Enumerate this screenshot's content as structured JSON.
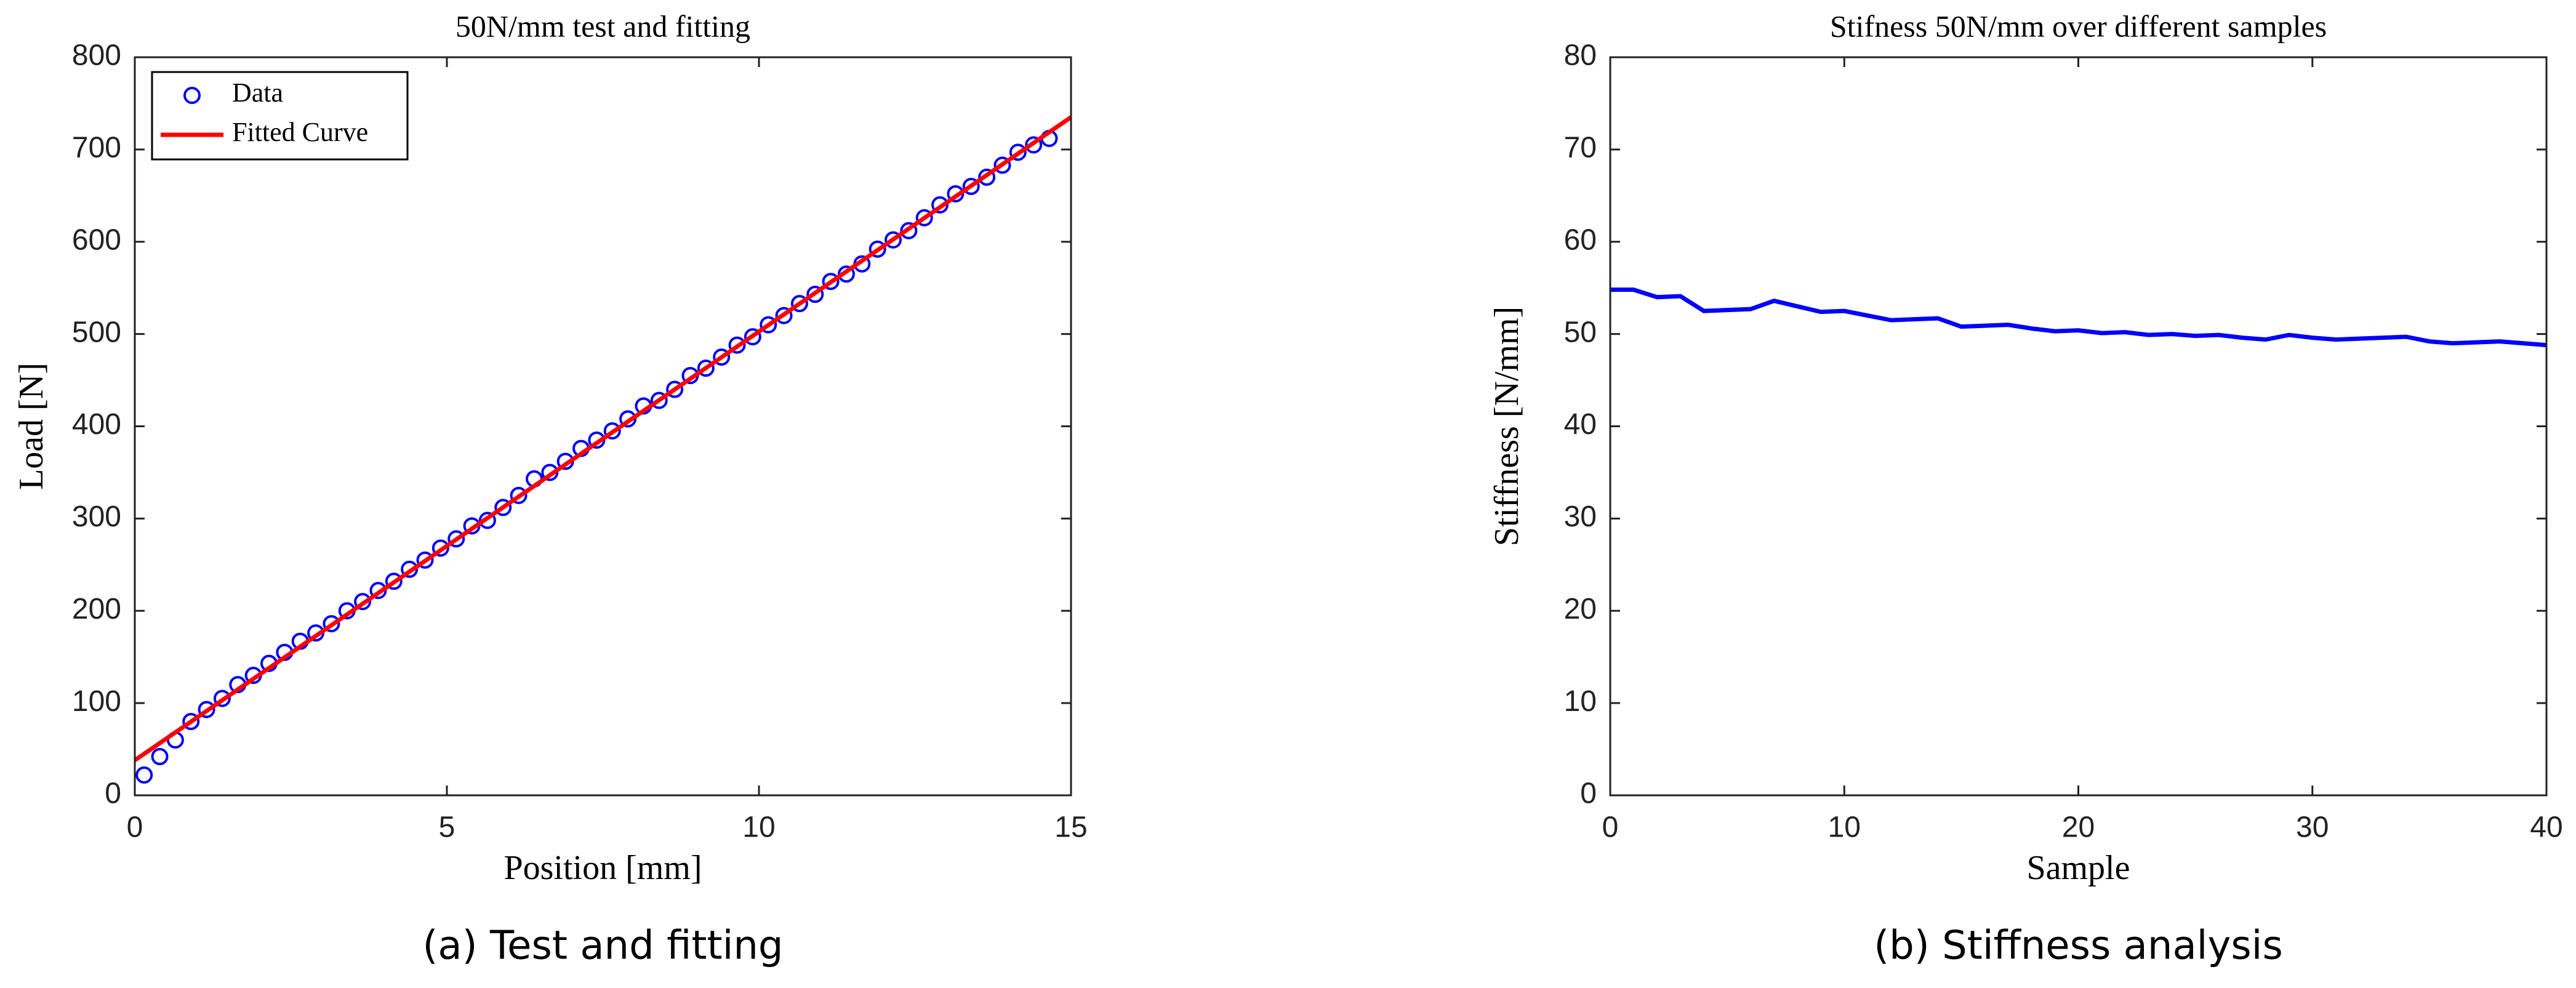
{
  "chart_data": [
    {
      "type": "scatter",
      "title": "50N/mm test and fitting",
      "xlabel": "Position [mm]",
      "ylabel": "Load [N]",
      "caption": "(a) Test and fitting",
      "xlim": [
        0,
        15
      ],
      "xticks": [
        0,
        5,
        10,
        15
      ],
      "ylim": [
        0,
        800
      ],
      "yticks": [
        0,
        100,
        200,
        300,
        400,
        500,
        600,
        700,
        800
      ],
      "legend": "upper left",
      "series": [
        {
          "name": "Data",
          "type": "scatter",
          "color": "#0000ff",
          "x": [
            0.15,
            0.4,
            0.65,
            0.9,
            1.15,
            1.4,
            1.65,
            1.9,
            2.15,
            2.4,
            2.65,
            2.9,
            3.15,
            3.4,
            3.65,
            3.9,
            4.15,
            4.4,
            4.65,
            4.9,
            5.15,
            5.4,
            5.65,
            5.9,
            6.15,
            6.4,
            6.65,
            6.9,
            7.15,
            7.4,
            7.65,
            7.9,
            8.15,
            8.4,
            8.65,
            8.9,
            9.15,
            9.4,
            9.65,
            9.9,
            10.15,
            10.4,
            10.65,
            10.9,
            11.15,
            11.4,
            11.65,
            11.9,
            12.15,
            12.4,
            12.65,
            12.9,
            13.15,
            13.4,
            13.65,
            13.9,
            14.15,
            14.4,
            14.65
          ],
          "values": [
            22,
            42,
            60,
            80,
            93,
            105,
            120,
            130,
            143,
            155,
            167,
            176,
            186,
            200,
            210,
            222,
            232,
            245,
            255,
            268,
            278,
            292,
            298,
            312,
            325,
            343,
            350,
            362,
            376,
            385,
            395,
            408,
            422,
            428,
            440,
            455,
            463,
            475,
            488,
            497,
            510,
            520,
            533,
            543,
            557,
            565,
            576,
            592,
            602,
            612,
            626,
            640,
            652,
            660,
            670,
            683,
            697,
            705,
            712
          ]
        },
        {
          "name": "Fitted Curve",
          "type": "line",
          "color": "#ff0000",
          "x": [
            0,
            15
          ],
          "values": [
            38,
            735
          ]
        }
      ]
    },
    {
      "type": "line",
      "title": "Stifness 50N/mm over different samples",
      "xlabel": "Sample",
      "ylabel": "Stiffness [N/mm]",
      "caption": "(b) Stiffness analysis",
      "xlim": [
        0,
        40
      ],
      "xticks": [
        0,
        10,
        20,
        30,
        40
      ],
      "ylim": [
        0,
        80
      ],
      "yticks": [
        0,
        10,
        20,
        30,
        40,
        50,
        60,
        70,
        80
      ],
      "series": [
        {
          "color": "#0000ff",
          "x": [
            0,
            1,
            2,
            3,
            4,
            5,
            6,
            7,
            8,
            9,
            10,
            11,
            12,
            13,
            14,
            15,
            16,
            17,
            18,
            19,
            20,
            21,
            22,
            23,
            24,
            25,
            26,
            27,
            28,
            29,
            30,
            31,
            32,
            33,
            34,
            35,
            36,
            37,
            38,
            39,
            40
          ],
          "values": [
            54.8,
            54.8,
            54,
            54.1,
            52.5,
            52.6,
            52.7,
            53.6,
            53,
            52.4,
            52.5,
            52,
            51.5,
            51.6,
            51.7,
            50.8,
            50.9,
            51,
            50.6,
            50.3,
            50.4,
            50.1,
            50.2,
            49.9,
            50,
            49.8,
            49.9,
            49.6,
            49.4,
            49.9,
            49.6,
            49.4,
            49.5,
            49.6,
            49.7,
            49.2,
            49,
            49.1,
            49.2,
            49,
            48.8
          ]
        }
      ]
    }
  ]
}
